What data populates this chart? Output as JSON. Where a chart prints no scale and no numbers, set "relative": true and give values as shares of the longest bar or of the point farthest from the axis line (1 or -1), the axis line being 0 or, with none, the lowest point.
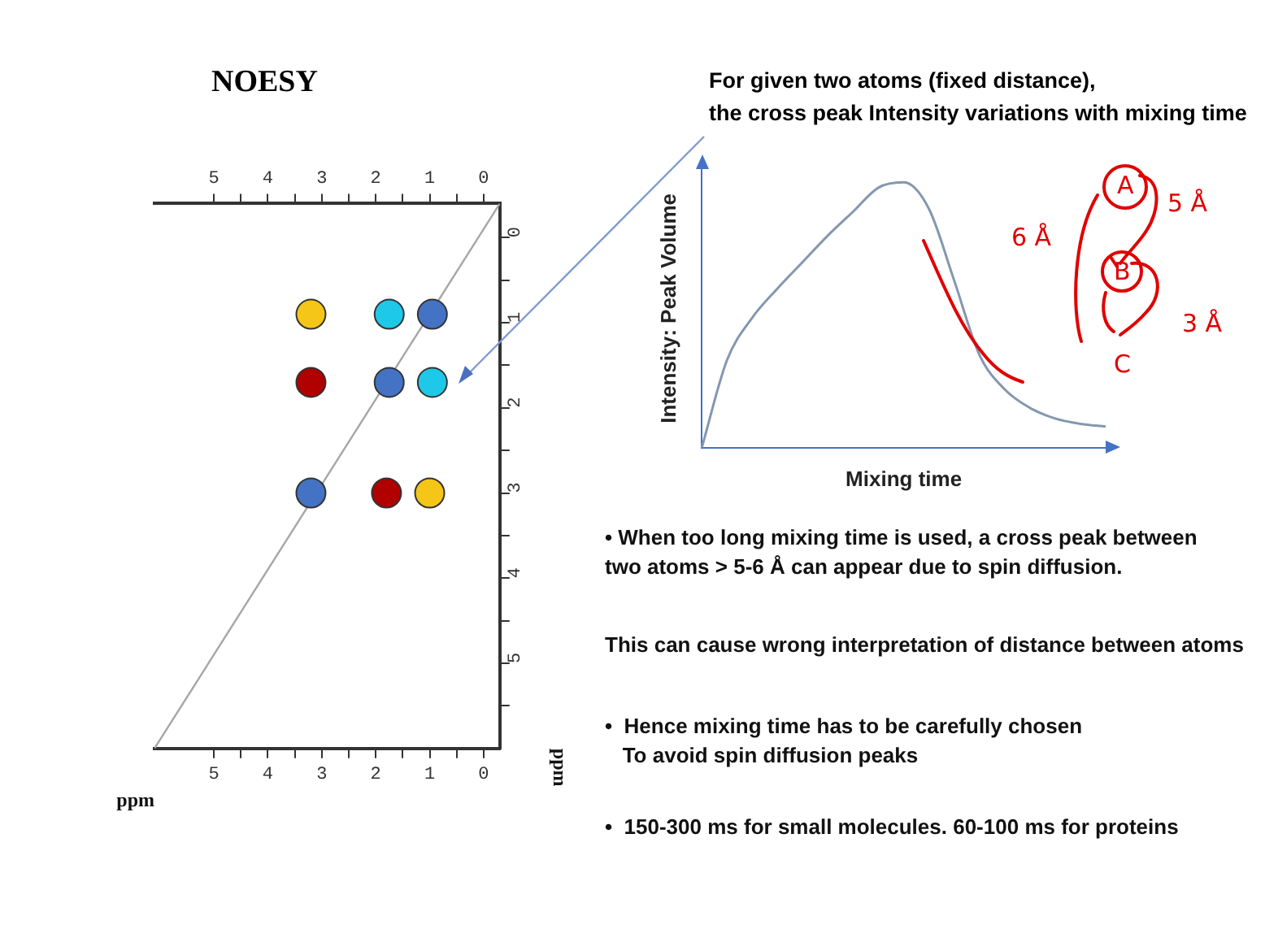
{
  "chart_data": [
    {
      "type": "scatter",
      "title": "NOESY",
      "xlabel": "ppm",
      "ylabel": "ppm",
      "xlim": [
        6.1,
        -0.3
      ],
      "xticks": [
        5,
        {
          "value": 4.5,
          "label": null
        },
        4,
        {
          "value": 3.5,
          "label": null
        },
        3,
        {
          "value": 2.5,
          "label": null
        },
        2,
        {
          "value": 1.5,
          "label": null
        },
        1,
        {
          "value": 0.5,
          "label": null
        },
        0
      ],
      "x2lim": [
        6.1,
        -0.3
      ],
      "x2ticks": [
        5,
        {
          "value": 4.5,
          "label": null
        },
        4,
        {
          "value": 3.5,
          "label": null
        },
        3,
        {
          "value": 2.5,
          "label": null
        },
        2,
        {
          "value": 1.5,
          "label": null
        },
        1,
        {
          "value": 0.5,
          "label": null
        },
        0
      ],
      "ylim": [
        6.0,
        -0.4
      ],
      "yticks": [
        0,
        {
          "value": 0.5,
          "label": null
        },
        1,
        {
          "value": 1.5,
          "label": null
        },
        2,
        {
          "value": 2.5,
          "label": null
        },
        3,
        {
          "value": 3.5,
          "label": null
        },
        4,
        {
          "value": 4.5,
          "label": null
        },
        5,
        {
          "value": 5.5,
          "label": null
        }
      ],
      "series": [
        {
          "type": "line",
          "color": "#a6a6a6",
          "x": [
            6.1,
            -0.3
          ],
          "values": [
            6.0,
            -0.4
          ]
        },
        {
          "type": "scatter",
          "marker": "circle",
          "x": [
            3.2,
            1.75,
            0.95,
            3.2,
            1.75,
            0.95,
            3.2,
            1.8,
            1.0
          ],
          "values": [
            0.9,
            0.9,
            0.9,
            1.7,
            1.7,
            1.7,
            3.0,
            3.0,
            3.0
          ],
          "colors": [
            "#f5c518",
            "#1ec8e8",
            "#4472c4",
            "#b00000",
            "#4472c4",
            "#1ec8e8",
            "#4472c4",
            "#b00000",
            "#f5c518"
          ]
        }
      ]
    },
    {
      "type": "line",
      "title": "For given two atoms (fixed distance),\nthe cross peak Intensity variations with mixing time",
      "xlabel": "Mixing time",
      "ylabel": "Intensity: Peak Volume",
      "relative": true,
      "categories": [
        null,
        null,
        null,
        null,
        null,
        null,
        null,
        null,
        null,
        null,
        null,
        null,
        null,
        null,
        null,
        null,
        null
      ],
      "series": [
        {
          "color": "#8497b0",
          "values": [
            0,
            0.33,
            0.49,
            0.6,
            0.7,
            0.8,
            0.89,
            0.98,
            1.0,
            0.9,
            0.63,
            0.35,
            0.22,
            0.15,
            0.11,
            0.09,
            0.08
          ]
        }
      ],
      "annotations": [
        "6 Å",
        "5 Å",
        "3 Å",
        "A",
        "B",
        "C"
      ]
    },
    {
      "type": "other",
      "annotations": [
        "• When too long mixing time is used, a cross peak between\ntwo atoms > 5-6 Å can appear due to spin diffusion.",
        "This can cause wrong interpretation of distance between atoms",
        "•  Hence mixing time has to be carefully chosen\n   To avoid spin diffusion peaks",
        "•  150-300 ms for small molecules. 60-100 ms for proteins"
      ]
    }
  ]
}
